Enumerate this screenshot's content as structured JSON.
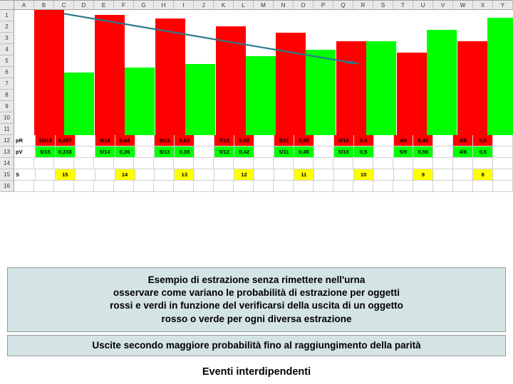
{
  "spreadsheet": {
    "col_headers": [
      "A",
      "B",
      "C",
      "D",
      "E",
      "F",
      "G",
      "H",
      "I",
      "J",
      "K",
      "L",
      "M",
      "N",
      "O",
      "P",
      "Q",
      "R",
      "S",
      "T",
      "U",
      "V",
      "W",
      "X",
      "Y"
    ],
    "row_numbers": [
      "1",
      "2",
      "3",
      "4",
      "5",
      "6",
      "7",
      "8",
      "9",
      "10",
      "11",
      "12",
      "13",
      "14",
      "15",
      "16"
    ]
  },
  "chart": {
    "type": "bar",
    "background_color": "#ffffff",
    "grid_color": "#c0c0c0",
    "yaxis_rows": 11,
    "bar_pairs": [
      {
        "red": 1.0,
        "green": 0.5
      },
      {
        "red": 0.96,
        "green": 0.54
      },
      {
        "red": 0.93,
        "green": 0.57
      },
      {
        "red": 0.87,
        "green": 0.63
      },
      {
        "red": 0.82,
        "green": 0.68
      },
      {
        "red": 0.75,
        "green": 0.75
      },
      {
        "red": 0.66,
        "green": 0.84
      },
      {
        "red": 0.75,
        "green": 0.94
      }
    ],
    "group_col_widths": [
      3,
      3,
      3,
      3,
      3,
      3,
      3,
      3
    ],
    "group_gap_cols": 1,
    "colors": {
      "red": "#ff0000",
      "green": "#00ff00"
    },
    "arrow": {
      "x1_pct": 10,
      "y1_pct": 3,
      "x2_pct": 69,
      "y2_pct": 43,
      "stroke": "#2a7a8a",
      "width": 2.2
    }
  },
  "data_rows": {
    "pR": {
      "label": "pR",
      "bg": "red",
      "cells": [
        "10/15",
        "0,667",
        "",
        "9/14",
        "0,64",
        "",
        "8/13",
        "0,62",
        "",
        "7/12",
        "0,58",
        "",
        "6/11",
        "0,55",
        "",
        "5/10",
        "0,5",
        "",
        "4/9",
        "0,44",
        "",
        "4/8",
        "0,5"
      ]
    },
    "pV": {
      "label": "pV",
      "bg": "green",
      "cells": [
        "5/15",
        "0,333",
        "",
        "5/14",
        "0,36",
        "",
        "5/13",
        "0,38",
        "",
        "5/12",
        "0,42",
        "",
        "5/11",
        "0,45",
        "",
        "5/10",
        "0,5",
        "",
        "5/9",
        "0,56",
        "",
        "4/8",
        "0,5"
      ]
    },
    "S": {
      "label": "S",
      "bg": "yellow",
      "cells": [
        "",
        "15",
        "",
        "",
        "14",
        "",
        "",
        "13",
        "",
        "",
        "12",
        "",
        "",
        "11",
        "",
        "",
        "10",
        "",
        "",
        "9",
        "",
        "",
        "8",
        ""
      ]
    }
  },
  "captions": {
    "box1": "Esempio di estrazione senza rimettere nell'urna\nosservare come variano le probabilità di estrazione per oggetti\nrossi e verdi in funzione del verificarsi della uscita di un oggetto\nrosso o verde per ogni diversa estrazione",
    "box2": "Uscite secondo maggiore probabilità fino al raggiungimento della parità",
    "plain": "Eventi interdipendenti"
  },
  "style": {
    "header_bg": "#e8e8e8",
    "border_color": "#c0c0c0",
    "caption_bg": "#d4e3e3",
    "font_family": "Arial",
    "caption_fontsize": 13.5,
    "caption_fontweight": "bold"
  }
}
